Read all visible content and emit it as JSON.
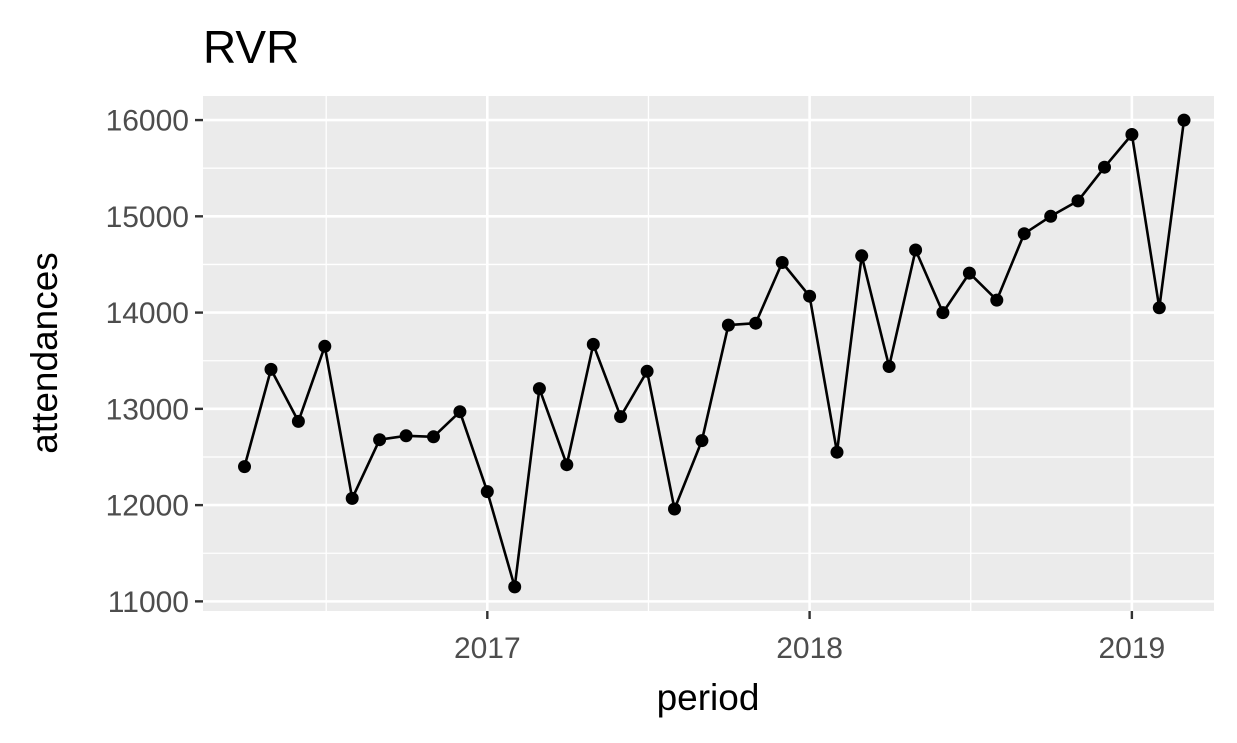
{
  "chart_data": {
    "type": "line",
    "title": "RVR",
    "xlabel": "period",
    "ylabel": "attendances",
    "xlim": [
      "2016-02-14",
      "2019-04-04"
    ],
    "ylim": [
      10900,
      16250
    ],
    "y_ticks": [
      11000,
      12000,
      13000,
      14000,
      15000,
      16000
    ],
    "y_tick_labels": [
      "11000",
      "12000",
      "13000",
      "14000",
      "15000",
      "16000"
    ],
    "x_ticks": [
      "2017-01-01",
      "2018-01-01",
      "2019-01-01"
    ],
    "x_tick_labels": [
      "2017",
      "2018",
      "2019"
    ],
    "grid": true,
    "panel_background": "#ebebeb",
    "grid_color": "#ffffff",
    "series_color": "#000000",
    "markers": true,
    "series": [
      {
        "x": [
          "2016-04-01",
          "2016-05-01",
          "2016-06-01",
          "2016-07-01",
          "2016-08-01",
          "2016-09-01",
          "2016-10-01",
          "2016-11-01",
          "2016-12-01",
          "2017-01-01",
          "2017-02-01",
          "2017-03-01",
          "2017-04-01",
          "2017-05-01",
          "2017-06-01",
          "2017-07-01",
          "2017-08-01",
          "2017-09-01",
          "2017-10-01",
          "2017-11-01",
          "2017-12-01",
          "2018-01-01",
          "2018-02-01",
          "2018-03-01",
          "2018-04-01",
          "2018-05-01",
          "2018-06-01",
          "2018-07-01",
          "2018-08-01",
          "2018-09-01",
          "2018-10-01",
          "2018-11-01",
          "2018-12-01",
          "2019-01-01",
          "2019-02-01",
          "2019-03-01"
        ],
        "values": [
          12400,
          13410,
          12870,
          13650,
          12070,
          12680,
          12720,
          12710,
          12970,
          12140,
          11150,
          13210,
          12420,
          13670,
          12920,
          13390,
          11960,
          12670,
          13870,
          13890,
          14520,
          14170,
          12550,
          14590,
          13440,
          14650,
          14000,
          14410,
          14130,
          14820,
          15000,
          15160,
          15510,
          15850,
          14050,
          16000
        ]
      }
    ]
  }
}
